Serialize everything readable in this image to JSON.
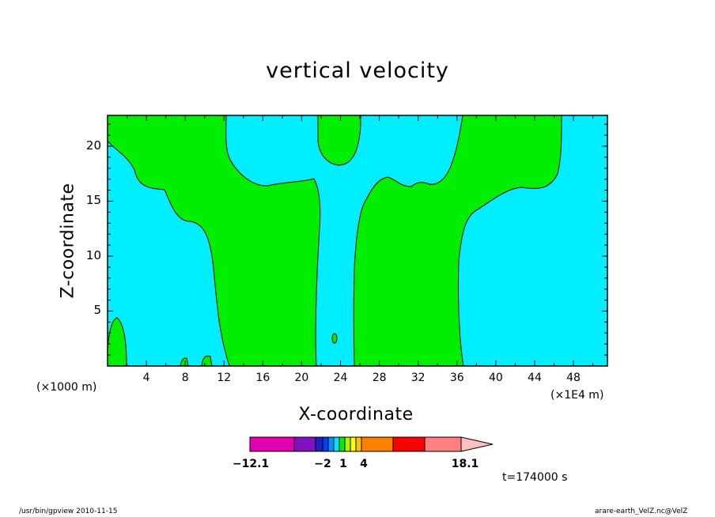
{
  "chart_data": {
    "type": "heatmap",
    "title": "vertical velocity",
    "xlabel": "X-coordinate",
    "ylabel": "Z-coordinate",
    "x_unit_left": "(×1000 m)",
    "x_unit_right": "(×1E4 m)",
    "xlim": [
      0,
      51.5
    ],
    "ylim": [
      0,
      22.8
    ],
    "x_ticks": [
      "4",
      "8",
      "12",
      "16",
      "20",
      "24",
      "28",
      "32",
      "36",
      "40",
      "44",
      "48"
    ],
    "y_ticks": [
      "5",
      "10",
      "15",
      "20"
    ],
    "field_colors": {
      "background": "#00eeff",
      "positive": "#00ee00",
      "contour": "#000000"
    },
    "colorbar": {
      "min_label": "−12.1",
      "max_label": "18.1",
      "tick_labels": [
        "−2",
        "1",
        "4"
      ],
      "colors": [
        "#e000b0",
        "#8010c0",
        "#2020c0",
        "#0040ff",
        "#0090ff",
        "#00e0ff",
        "#00ee00",
        "#b0f000",
        "#ffff00",
        "#ffc000",
        "#ff8000",
        "#ff6000",
        "#ff0000",
        "#ff8080",
        "#ffc0c0"
      ]
    },
    "time_label": "t=174000 s"
  },
  "footer": {
    "left": "/usr/bin/gpview   2010-11-15",
    "right": "arare-earth_VelZ.nc@VelZ"
  }
}
